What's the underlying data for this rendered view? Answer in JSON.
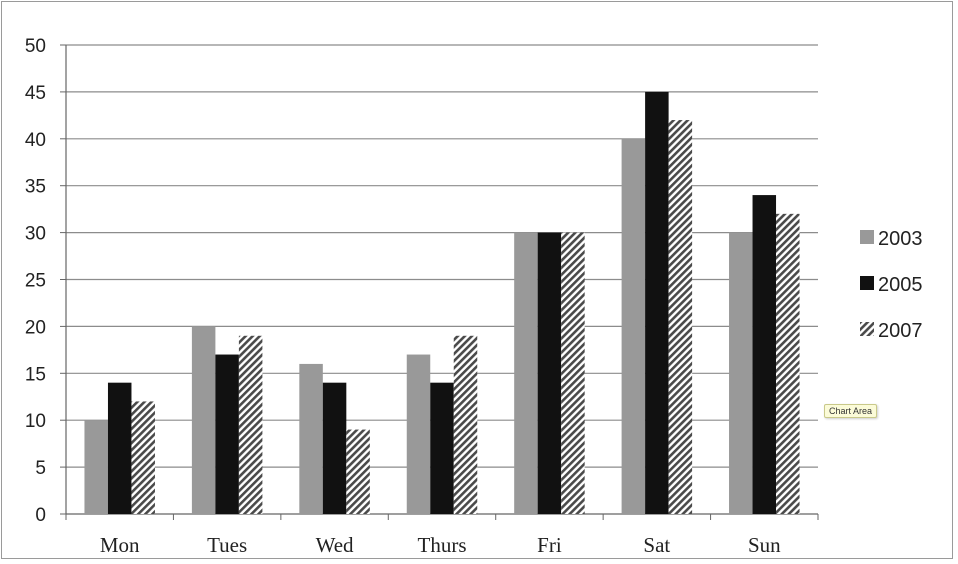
{
  "chart_data": {
    "type": "bar",
    "categories": [
      "Mon",
      "Tues",
      "Wed",
      "Thurs",
      "Fri",
      "Sat",
      "Sun"
    ],
    "series": [
      {
        "name": "2003",
        "values": [
          10,
          20,
          16,
          17,
          30,
          40,
          30
        ],
        "color": "#999999",
        "pattern": "solid"
      },
      {
        "name": "2005",
        "values": [
          14,
          17,
          14,
          14,
          30,
          45,
          34
        ],
        "color": "#111111",
        "pattern": "solid"
      },
      {
        "name": "2007",
        "values": [
          12,
          19,
          9,
          19,
          30,
          42,
          32
        ],
        "color": "#555555",
        "pattern": "diagonal-hatch"
      }
    ],
    "ylim": [
      0,
      50
    ],
    "yticks": [
      0,
      5,
      10,
      15,
      20,
      25,
      30,
      35,
      40,
      45,
      50
    ],
    "grid": true,
    "legend_position": "right"
  },
  "tooltip": {
    "text": "Chart Area"
  }
}
